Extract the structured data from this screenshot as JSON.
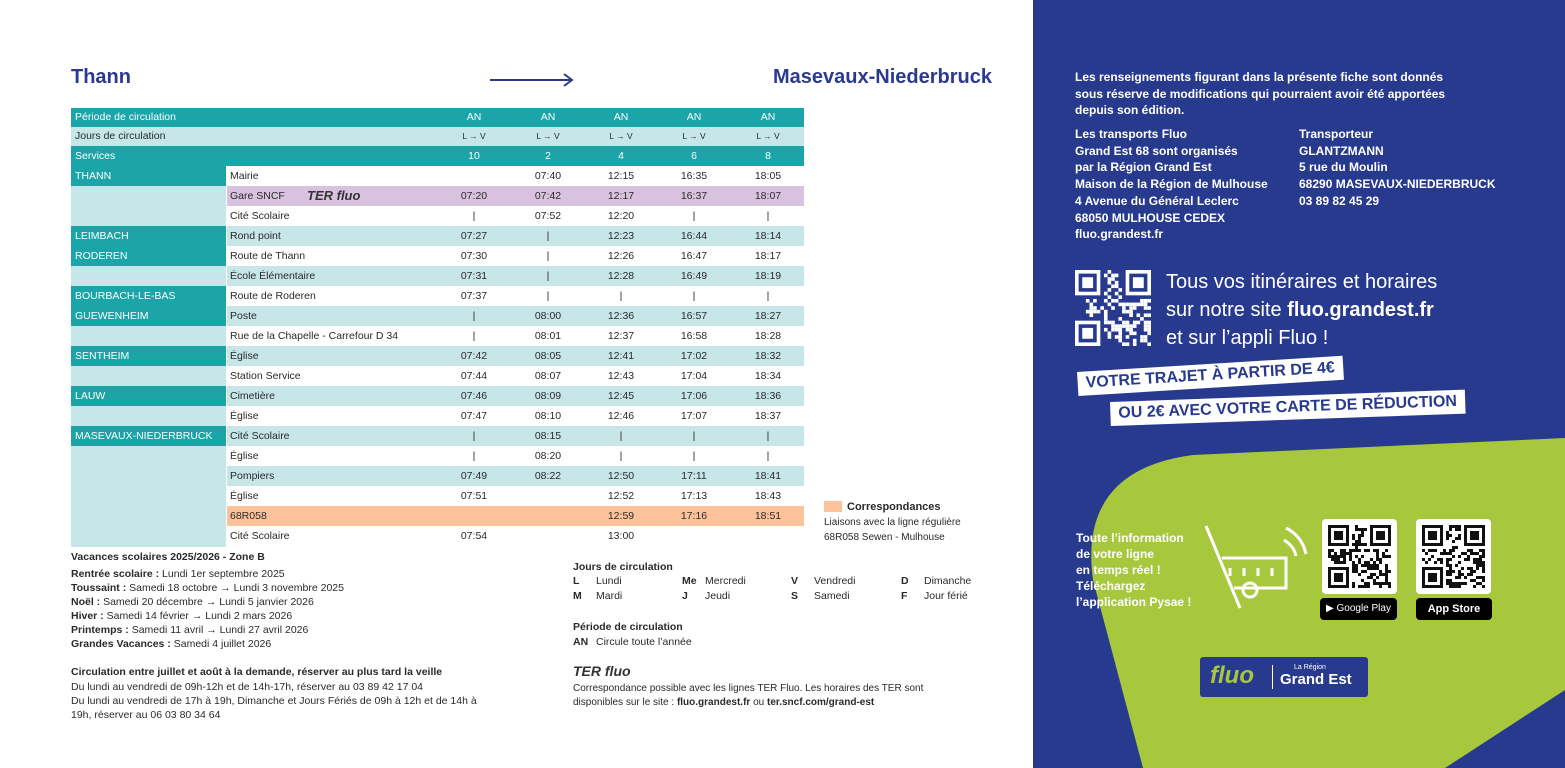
{
  "header": {
    "from": "Thann",
    "to": "Masevaux-Niederbruck"
  },
  "table": {
    "header_rows": [
      [
        "Période de circulation",
        "AN",
        "AN",
        "AN",
        "AN",
        "AN"
      ],
      [
        "Jours de circulation",
        "L → V",
        "L → V",
        "L → V",
        "L → V",
        "L → V"
      ],
      [
        "Services",
        "10",
        "2",
        "4",
        "6",
        "8"
      ]
    ],
    "ter_logo": "TER fluo",
    "rows": [
      [
        "THANN",
        "Mairie",
        null,
        "07:40",
        "12:15",
        "16:35",
        "18:05"
      ],
      [
        null,
        "Gare SNCF",
        "07:20",
        "07:42",
        "12:17",
        "16:37",
        "18:07"
      ],
      [
        null,
        "Cité Scolaire",
        "|",
        "07:52",
        "12:20",
        "|",
        "|"
      ],
      [
        "LEIMBACH",
        "Rond point",
        "07:27",
        "|",
        "12:23",
        "16:44",
        "18:14"
      ],
      [
        "RODEREN",
        "Route de Thann",
        "07:30",
        "|",
        "12:26",
        "16:47",
        "18:17"
      ],
      [
        null,
        "École Élémentaire",
        "07:31",
        "|",
        "12:28",
        "16:49",
        "18:19"
      ],
      [
        "BOURBACH-LE-BAS",
        "Route de Roderen",
        "07:37",
        "|",
        "|",
        "|",
        "|"
      ],
      [
        "GUEWENHEIM",
        "Poste",
        "|",
        "08:00",
        "12:36",
        "16:57",
        "18:27"
      ],
      [
        null,
        "Rue de la Chapelle - Carrefour D 34",
        "|",
        "08:01",
        "12:37",
        "16:58",
        "18:28"
      ],
      [
        "SENTHEIM",
        "Église",
        "07:42",
        "08:05",
        "12:41",
        "17:02",
        "18:32"
      ],
      [
        null,
        "Station Service",
        "07:44",
        "08:07",
        "12:43",
        "17:04",
        "18:34"
      ],
      [
        "LAUW",
        "Cimetière",
        "07:46",
        "08:09",
        "12:45",
        "17:06",
        "18:36"
      ],
      [
        null,
        "Église",
        "07:47",
        "08:10",
        "12:46",
        "17:07",
        "18:37"
      ],
      [
        "MASEVAUX-NIEDERBRUCK",
        "Cité Scolaire",
        "|",
        "08:15",
        "|",
        "|",
        "|"
      ],
      [
        null,
        "Église",
        "|",
        "08:20",
        "|",
        "|",
        "|"
      ],
      [
        null,
        "Pompiers",
        "07:49",
        "08:22",
        "12:50",
        "17:11",
        "18:41"
      ],
      [
        null,
        "Église",
        "07:51",
        null,
        "12:52",
        "17:13",
        "18:43"
      ],
      [
        null,
        "68R058",
        null,
        null,
        "12:59",
        "17:16",
        "18:51"
      ],
      [
        null,
        "Cité Scolaire",
        "07:54",
        null,
        "13:00",
        null,
        null
      ]
    ]
  },
  "legend": {
    "title": "Correspondances",
    "lines": [
      "Liaisons avec la ligne régulière",
      "68R058 Sewen - Mulhouse"
    ]
  },
  "holidays": {
    "title": "Vacances scolaires 2025/2026 - Zone B",
    "items": [
      {
        "label": "Rentrée scolaire :",
        "text": "Lundi 1er septembre 2025"
      },
      {
        "label": "Toussaint :",
        "text": "Samedi 18 octobre → Lundi 3 novembre 2025"
      },
      {
        "label": "Noël :",
        "text": "Samedi 20 décembre → Lundi 5 janvier 2026"
      },
      {
        "label": "Hiver :",
        "text": "Samedi 14 février → Lundi 2 mars 2026"
      },
      {
        "label": "Printemps :",
        "text": "Samedi 11 avril → Lundi 27 avril 2026"
      },
      {
        "label": "Grandes Vacances :",
        "text": "Samedi 4 juillet 2026"
      }
    ]
  },
  "summer": {
    "title": "Circulation entre juillet et août à la demande, réserver au plus tard la veille",
    "lines": [
      "Du lundi au vendredi de 09h-12h et de 14h-17h, réserver au 03 89 42 17 04",
      "Du lundi au vendredi de 17h à 19h, Dimanche et Jours Fériés de 09h à 12h et de 14h à 19h, réserver au 06 03 80 34 64"
    ]
  },
  "day_codes": {
    "title": "Jours de circulation",
    "items": [
      {
        "code": "L",
        "label": "Lundi"
      },
      {
        "code": "Me",
        "label": "Mercredi"
      },
      {
        "code": "V",
        "label": "Vendredi"
      },
      {
        "code": "D",
        "label": "Dimanche"
      },
      {
        "code": "M",
        "label": "Mardi"
      },
      {
        "code": "J",
        "label": "Jeudi"
      },
      {
        "code": "S",
        "label": "Samedi"
      },
      {
        "code": "F",
        "label": "Jour férié"
      }
    ]
  },
  "period_codes": {
    "title": "Période de circulation",
    "items": [
      {
        "code": "AN",
        "label": "Circule toute l’année"
      }
    ]
  },
  "ter_note": {
    "logo": "TER fluo",
    "text": "Correspondance possible avec les lignes TER Fluo. Les horaires des TER sont disponibles sur le site :",
    "link1": "fluo.grandest.fr",
    "or": "ou",
    "link2": "ter.sncf.com/grand-est"
  },
  "panel": {
    "disclaimer": "Les renseignements figurant dans la présente fiche sont donnés sous réserve de modifications qui pourraient avoir été apportées depuis son édition.",
    "organizer": [
      "Les transports Fluo",
      "Grand Est 68 sont organisés",
      "par la Région Grand Est",
      "Maison de la Région de Mulhouse",
      "4 Avenue du Général Leclerc",
      "68050 MULHOUSE CEDEX",
      "fluo.grandest.fr"
    ],
    "carrier": [
      "Transporteur",
      "GLANTZMANN",
      "5 rue du Moulin",
      "68290 MASEVAUX-NIEDERBRUCK",
      "03 89 82 45 29"
    ],
    "web": {
      "line1": "Tous vos itinéraires et horaires",
      "line2_pre": "sur notre site",
      "line2_site": "fluo.grandest.fr",
      "line3": "et sur l’appli Fluo !"
    },
    "banner": [
      "VOTRE TRAJET À PARTIR DE 4€",
      "OU 2€ AVEC VOTRE CARTE DE RÉDUCTION"
    ],
    "app": [
      "Toute l’information",
      "de votre ligne",
      "en temps réel !",
      "Téléchargez",
      "l’application Pysae !"
    ],
    "stores": [
      "Google Play",
      "App Store"
    ],
    "brand": {
      "name": "fluo",
      "region_small": "La Région",
      "region": "Grand Est"
    }
  }
}
